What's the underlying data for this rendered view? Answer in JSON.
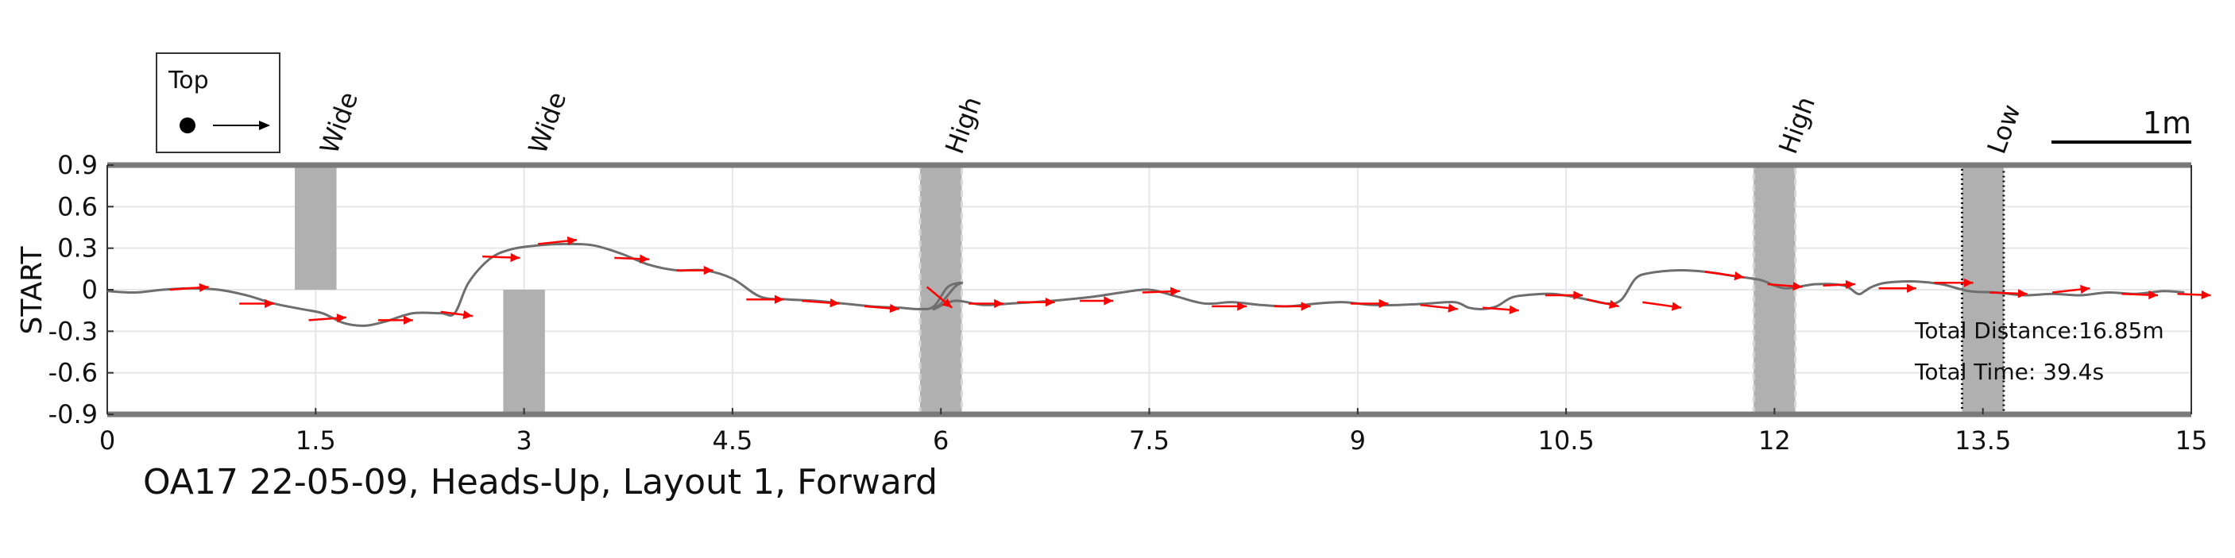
{
  "chart_data": {
    "type": "line",
    "caption": "OA17 22-05-09, Heads-Up, Layout 1, Forward",
    "ylabel": "START",
    "xlim": [
      0,
      15
    ],
    "ylim": [
      -0.9,
      0.9
    ],
    "x_ticks": [
      0,
      1.5,
      3,
      4.5,
      6,
      7.5,
      9,
      10.5,
      12,
      13.5,
      15
    ],
    "x_tick_labels": [
      "0",
      "1.5",
      "3",
      "4.5",
      "6",
      "7.5",
      "9",
      "10.5",
      "12",
      "13.5",
      "15"
    ],
    "y_ticks": [
      0.9,
      0.6,
      0.3,
      0,
      -0.3,
      -0.6,
      -0.9
    ],
    "y_tick_labels": [
      "0.9",
      "0.6",
      "0.3",
      "0",
      "-0.3",
      "-0.6",
      "-0.9"
    ],
    "grid": true,
    "legend": {
      "title": "Top",
      "placement": "top-left"
    },
    "scale_bar": {
      "label": "1m",
      "length_m": 1
    },
    "colors": {
      "path": "#6e6e6e",
      "heading": "#ff0000",
      "obstacle": "#b0b0b0",
      "frame": "#7a7a7a",
      "grid": "#e6e6e6"
    },
    "obstacles": [
      {
        "label": "Wide",
        "x0": 1.35,
        "x1": 1.65,
        "y0": 0.0,
        "y1": 0.9,
        "style": "solid"
      },
      {
        "label": "Wide",
        "x0": 2.85,
        "x1": 3.15,
        "y0": -0.9,
        "y1": 0.0,
        "style": "solid"
      },
      {
        "label": "High",
        "x0": 5.85,
        "x1": 6.15,
        "y0": -0.9,
        "y1": 0.9,
        "style": "dashed"
      },
      {
        "label": "High",
        "x0": 11.85,
        "x1": 12.15,
        "y0": -0.9,
        "y1": 0.9,
        "style": "dashed"
      },
      {
        "label": "Low",
        "x0": 13.35,
        "x1": 13.65,
        "y0": -0.9,
        "y1": 0.9,
        "style": "dotted"
      }
    ],
    "path": {
      "x": [
        0,
        0.2,
        0.4,
        0.6,
        0.8,
        1.0,
        1.2,
        1.4,
        1.55,
        1.7,
        1.85,
        2.0,
        2.2,
        2.4,
        2.5,
        2.6,
        2.75,
        2.9,
        3.1,
        3.3,
        3.5,
        3.7,
        3.9,
        4.1,
        4.3,
        4.5,
        4.7,
        4.9,
        5.1,
        5.3,
        5.5,
        5.7,
        5.85,
        5.95,
        6.05,
        6.15,
        6.1,
        6.0,
        5.95,
        6.1,
        6.3,
        6.5,
        6.8,
        7.1,
        7.3,
        7.5,
        7.7,
        7.9,
        8.1,
        8.3,
        8.5,
        8.7,
        8.9,
        9.1,
        9.3,
        9.5,
        9.7,
        9.8,
        9.9,
        10.0,
        10.1,
        10.2,
        10.4,
        10.6,
        10.8,
        10.9,
        11.0,
        11.1,
        11.3,
        11.5,
        11.7,
        11.9,
        12.0,
        12.1,
        12.3,
        12.5,
        12.6,
        12.65,
        12.7,
        12.8,
        13.0,
        13.2,
        13.4,
        13.6,
        13.8,
        14.0,
        14.2,
        14.4,
        14.6,
        14.8,
        14.95
      ],
      "y": [
        -0.01,
        -0.02,
        0.0,
        0.01,
        0.0,
        -0.04,
        -0.1,
        -0.14,
        -0.17,
        -0.24,
        -0.26,
        -0.23,
        -0.17,
        -0.17,
        -0.17,
        0.05,
        0.22,
        0.29,
        0.32,
        0.33,
        0.32,
        0.26,
        0.18,
        0.14,
        0.14,
        0.08,
        -0.05,
        -0.07,
        -0.08,
        -0.1,
        -0.12,
        -0.13,
        -0.14,
        -0.12,
        0.02,
        0.05,
        0.02,
        -0.1,
        -0.14,
        -0.08,
        -0.11,
        -0.1,
        -0.08,
        -0.05,
        -0.02,
        0.0,
        -0.05,
        -0.1,
        -0.09,
        -0.11,
        -0.12,
        -0.1,
        -0.09,
        -0.11,
        -0.11,
        -0.1,
        -0.09,
        -0.13,
        -0.14,
        -0.12,
        -0.06,
        -0.04,
        -0.03,
        -0.06,
        -0.1,
        -0.07,
        0.08,
        0.12,
        0.14,
        0.13,
        0.1,
        0.07,
        0.03,
        0.01,
        0.04,
        0.03,
        -0.03,
        -0.01,
        0.02,
        0.05,
        0.06,
        0.04,
        -0.01,
        -0.02,
        -0.04,
        -0.03,
        -0.04,
        -0.02,
        -0.03,
        -0.01,
        -0.02
      ]
    },
    "heading_arrows": [
      {
        "x": 0.45,
        "y": 0.0,
        "dx": 0.28,
        "dy": 0.02
      },
      {
        "x": 0.95,
        "y": -0.1,
        "dx": 0.25,
        "dy": 0.0
      },
      {
        "x": 1.45,
        "y": -0.22,
        "dx": 0.27,
        "dy": 0.02
      },
      {
        "x": 1.95,
        "y": -0.22,
        "dx": 0.25,
        "dy": 0.0
      },
      {
        "x": 2.4,
        "y": -0.16,
        "dx": 0.23,
        "dy": -0.03
      },
      {
        "x": 2.7,
        "y": 0.24,
        "dx": 0.27,
        "dy": -0.01
      },
      {
        "x": 3.1,
        "y": 0.33,
        "dx": 0.28,
        "dy": 0.03
      },
      {
        "x": 3.65,
        "y": 0.23,
        "dx": 0.25,
        "dy": -0.01
      },
      {
        "x": 4.1,
        "y": 0.14,
        "dx": 0.26,
        "dy": 0.0
      },
      {
        "x": 4.6,
        "y": -0.07,
        "dx": 0.27,
        "dy": 0.0
      },
      {
        "x": 5.0,
        "y": -0.08,
        "dx": 0.27,
        "dy": -0.02
      },
      {
        "x": 5.45,
        "y": -0.12,
        "dx": 0.25,
        "dy": -0.02
      },
      {
        "x": 5.9,
        "y": 0.02,
        "dx": 0.18,
        "dy": -0.15
      },
      {
        "x": 6.2,
        "y": -0.1,
        "dx": 0.25,
        "dy": 0.0
      },
      {
        "x": 6.55,
        "y": -0.09,
        "dx": 0.27,
        "dy": 0.0
      },
      {
        "x": 7.0,
        "y": -0.08,
        "dx": 0.24,
        "dy": 0.0
      },
      {
        "x": 7.45,
        "y": -0.02,
        "dx": 0.27,
        "dy": 0.01
      },
      {
        "x": 7.95,
        "y": -0.12,
        "dx": 0.25,
        "dy": 0.0
      },
      {
        "x": 8.4,
        "y": -0.12,
        "dx": 0.26,
        "dy": 0.0
      },
      {
        "x": 8.95,
        "y": -0.1,
        "dx": 0.27,
        "dy": 0.0
      },
      {
        "x": 9.45,
        "y": -0.11,
        "dx": 0.27,
        "dy": -0.03
      },
      {
        "x": 9.9,
        "y": -0.13,
        "dx": 0.26,
        "dy": -0.02
      },
      {
        "x": 10.35,
        "y": -0.04,
        "dx": 0.27,
        "dy": 0.0
      },
      {
        "x": 10.65,
        "y": -0.07,
        "dx": 0.23,
        "dy": -0.05
      },
      {
        "x": 11.05,
        "y": -0.09,
        "dx": 0.28,
        "dy": -0.04
      },
      {
        "x": 11.5,
        "y": 0.13,
        "dx": 0.28,
        "dy": -0.04
      },
      {
        "x": 11.95,
        "y": 0.04,
        "dx": 0.25,
        "dy": -0.02
      },
      {
        "x": 12.35,
        "y": 0.03,
        "dx": 0.23,
        "dy": 0.01
      },
      {
        "x": 12.75,
        "y": 0.01,
        "dx": 0.27,
        "dy": 0.0
      },
      {
        "x": 13.15,
        "y": 0.05,
        "dx": 0.28,
        "dy": 0.0
      },
      {
        "x": 13.55,
        "y": -0.02,
        "dx": 0.27,
        "dy": -0.01
      },
      {
        "x": 14.0,
        "y": -0.02,
        "dx": 0.27,
        "dy": 0.03
      },
      {
        "x": 14.5,
        "y": -0.03,
        "dx": 0.26,
        "dy": -0.01
      },
      {
        "x": 14.9,
        "y": -0.03,
        "dx": 0.24,
        "dy": -0.01
      }
    ],
    "annotations": {
      "total_distance": "Total Distance:16.85m",
      "total_time": "Total Time: 39.4s"
    }
  }
}
